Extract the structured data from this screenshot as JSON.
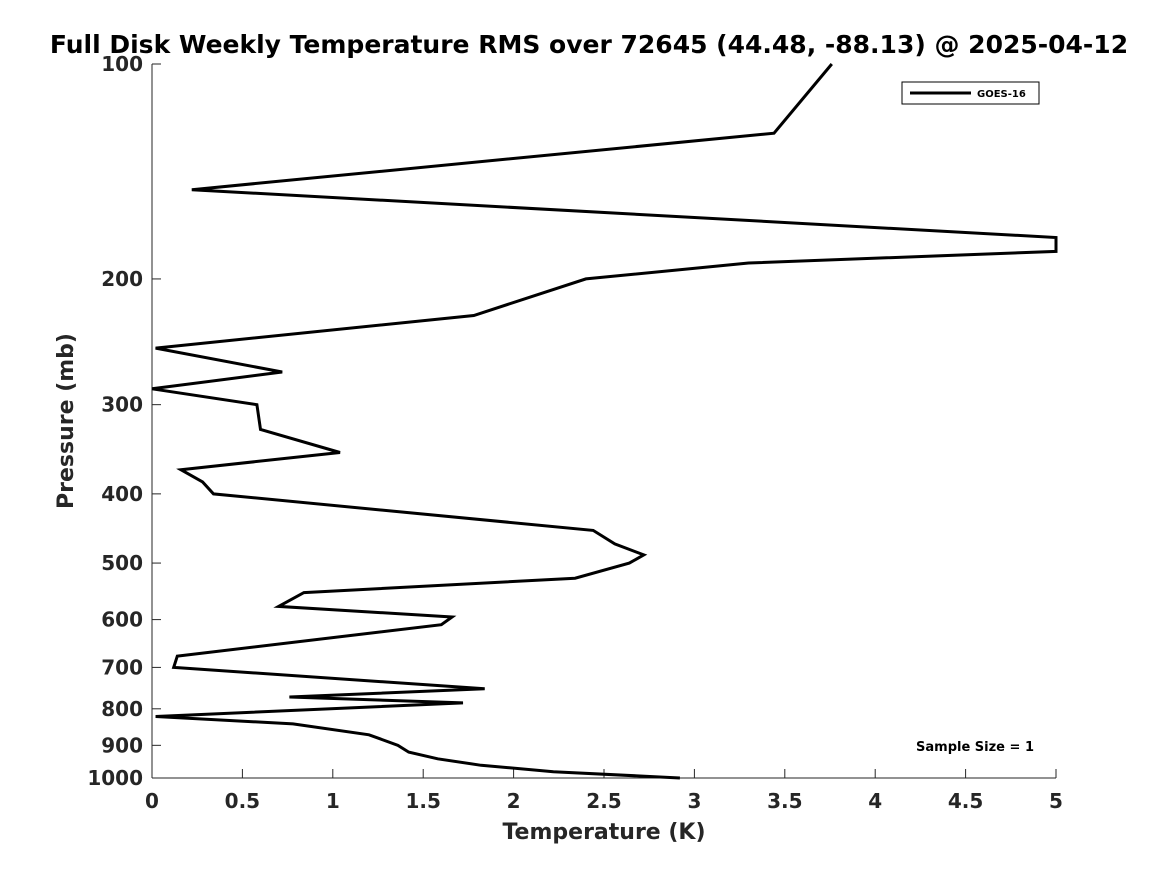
{
  "chart_data": {
    "type": "line",
    "title": "Full Disk Weekly Temperature RMS over 72645 (44.48, -88.13) @ 2025-04-12",
    "xlabel": "Temperature (K)",
    "ylabel": "Pressure (mb)",
    "xlim": [
      0,
      5
    ],
    "ylim": [
      100,
      1000
    ],
    "y_scale": "log",
    "y_reversed": true,
    "x_ticks": [
      "0",
      "0.5",
      "1",
      "1.5",
      "2",
      "2.5",
      "3",
      "3.5",
      "4",
      "4.5",
      "5"
    ],
    "y_ticks": [
      "100",
      "200",
      "300",
      "400",
      "500",
      "600",
      "700",
      "800",
      "900",
      "1000"
    ],
    "grid": false,
    "legend_position": "top-right",
    "annotation": "Sample Size = 1",
    "series": [
      {
        "name": "GOES-16",
        "color": "#000000",
        "x": [
          3.76,
          3.44,
          0.22,
          5.0,
          5.0,
          3.3,
          2.4,
          1.78,
          0.02,
          0.72,
          0.0,
          0.58,
          0.6,
          1.04,
          0.16,
          0.28,
          0.34,
          2.44,
          2.56,
          2.72,
          2.64,
          2.34,
          0.84,
          0.7,
          1.66,
          1.6,
          0.14,
          0.12,
          1.84,
          0.76,
          1.72,
          0.02,
          0.78,
          1.2,
          1.36,
          1.42,
          1.58,
          1.82,
          2.22,
          2.92
        ],
        "y": [
          100,
          125,
          150,
          175,
          183,
          190,
          200,
          225,
          250,
          270,
          285,
          300,
          325,
          350,
          370,
          385,
          400,
          450,
          470,
          487,
          500,
          525,
          550,
          575,
          595,
          610,
          675,
          700,
          750,
          770,
          785,
          820,
          840,
          870,
          900,
          920,
          940,
          960,
          980,
          1000
        ]
      }
    ]
  }
}
